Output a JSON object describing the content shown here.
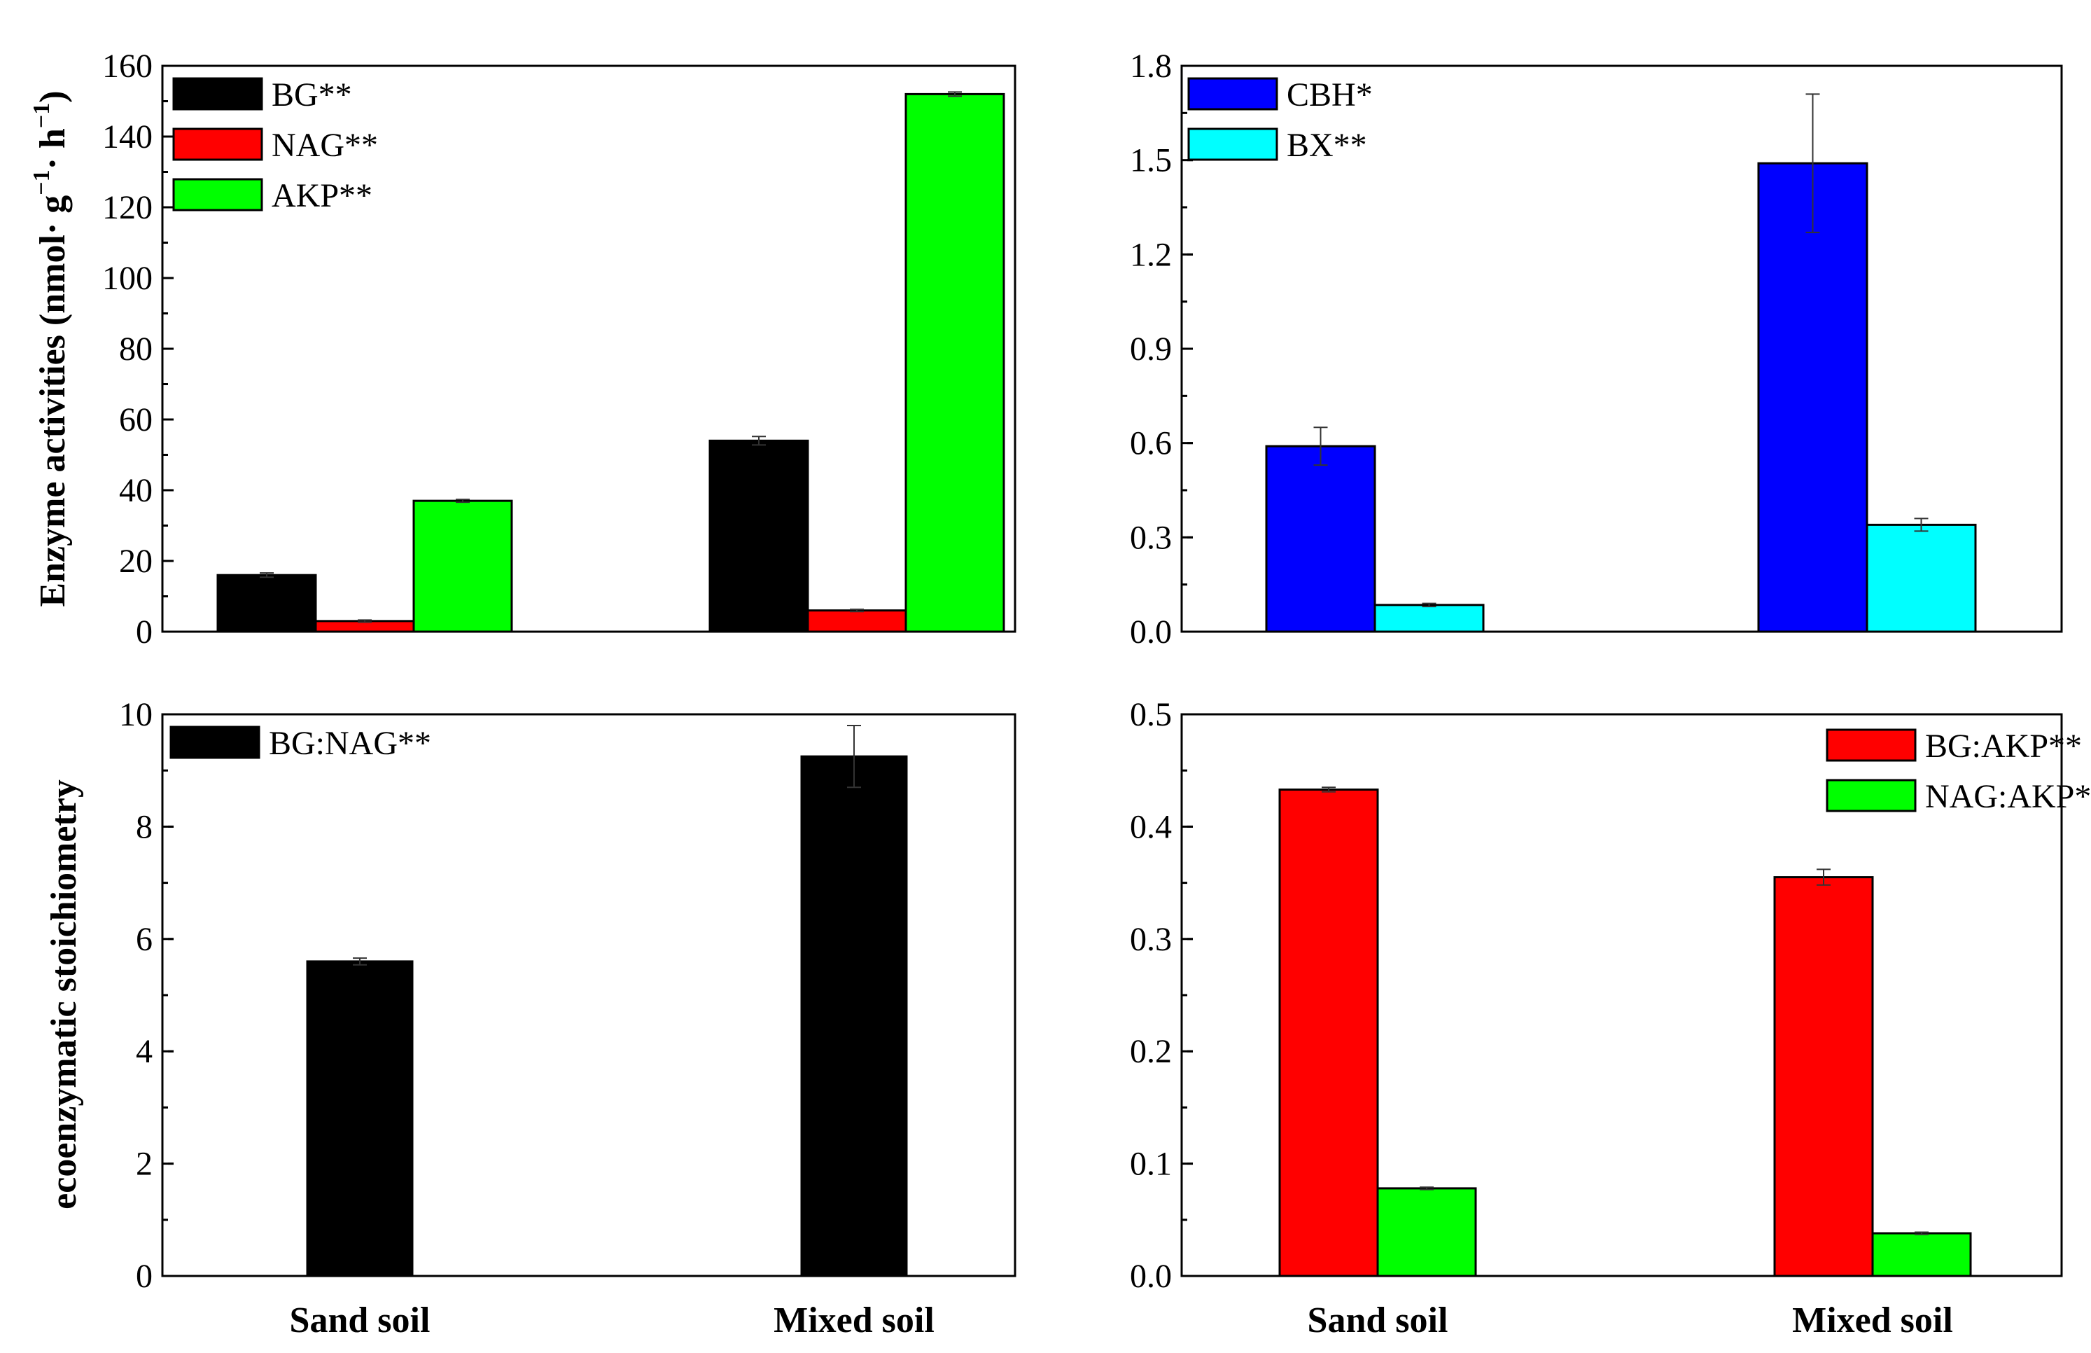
{
  "chart_data": [
    {
      "panel": "top-left",
      "type": "bar",
      "categories": [
        "Sand soil",
        "Mixed soil"
      ],
      "series": [
        {
          "name": "BG**",
          "color": "#000000",
          "values": [
            16,
            54
          ],
          "errors": [
            0.6,
            1.2
          ]
        },
        {
          "name": "NAG**",
          "color": "#ff0000",
          "values": [
            3,
            6
          ],
          "errors": [
            0.3,
            0.3
          ]
        },
        {
          "name": "AKP**",
          "color": "#00ff00",
          "values": [
            37,
            152
          ],
          "errors": [
            0.4,
            0.6
          ]
        }
      ],
      "ylim": [
        0,
        160
      ],
      "yticks": [
        0,
        20,
        40,
        60,
        80,
        100,
        120,
        140,
        160
      ],
      "ytick_labels": [
        "0",
        "20",
        "40",
        "60",
        "80",
        "100",
        "120",
        "140",
        "160"
      ],
      "ylabel": "Enzyme  activities (nmol· g",
      "ylabel_sup1": "−1",
      "ylabel_mid": "·  h",
      "ylabel_sup2": "−1",
      "ylabel_end": ")",
      "legend_position": "top-left"
    },
    {
      "panel": "top-right",
      "type": "bar",
      "categories": [
        "Sand soil",
        "Mixed soil"
      ],
      "series": [
        {
          "name": "CBH*",
          "color": "#0000ff",
          "values": [
            0.59,
            1.49
          ],
          "errors": [
            0.06,
            0.22
          ]
        },
        {
          "name": "BX**",
          "color": "#00ffff",
          "values": [
            0.085,
            0.34
          ],
          "errors": [
            0.005,
            0.02
          ]
        }
      ],
      "ylim": [
        0,
        1.8
      ],
      "yticks": [
        0,
        0.3,
        0.6,
        0.9,
        1.2,
        1.5,
        1.8
      ],
      "ytick_labels": [
        "0.0",
        "0.3",
        "0.6",
        "0.9",
        "1.2",
        "1.5",
        "1.8"
      ],
      "legend_position": "top-left"
    },
    {
      "panel": "bottom-left",
      "type": "bar",
      "categories": [
        "Sand soil",
        "Mixed soil"
      ],
      "series": [
        {
          "name": "BG:NAG**",
          "color": "#000000",
          "values": [
            5.6,
            9.25
          ],
          "errors": [
            0.06,
            0.55
          ]
        }
      ],
      "ylim": [
        0,
        10
      ],
      "yticks": [
        0,
        2,
        4,
        6,
        8,
        10
      ],
      "ytick_labels": [
        "0",
        "2",
        "4",
        "6",
        "8",
        "10"
      ],
      "ylabel": "ecoenzymatic stoichiometry",
      "xlabel_categories": [
        "Sand soil",
        "Mixed soil"
      ],
      "legend_position": "top-left"
    },
    {
      "panel": "bottom-right",
      "type": "bar",
      "categories": [
        "Sand soil",
        "Mixed soil"
      ],
      "series": [
        {
          "name": "BG:AKP**",
          "color": "#ff0000",
          "values": [
            0.433,
            0.355
          ],
          "errors": [
            0.002,
            0.007
          ]
        },
        {
          "name": "NAG:AKP**",
          "color": "#00ff00",
          "values": [
            0.078,
            0.038
          ],
          "errors": [
            0.001,
            0.001
          ]
        }
      ],
      "ylim": [
        0,
        0.5
      ],
      "yticks": [
        0,
        0.1,
        0.2,
        0.3,
        0.4,
        0.5
      ],
      "ytick_labels": [
        "0.0",
        "0.1",
        "0.2",
        "0.3",
        "0.4",
        "0.5"
      ],
      "xlabel_categories": [
        "Sand soil",
        "Mixed soil"
      ],
      "legend_position": "top-right"
    }
  ]
}
